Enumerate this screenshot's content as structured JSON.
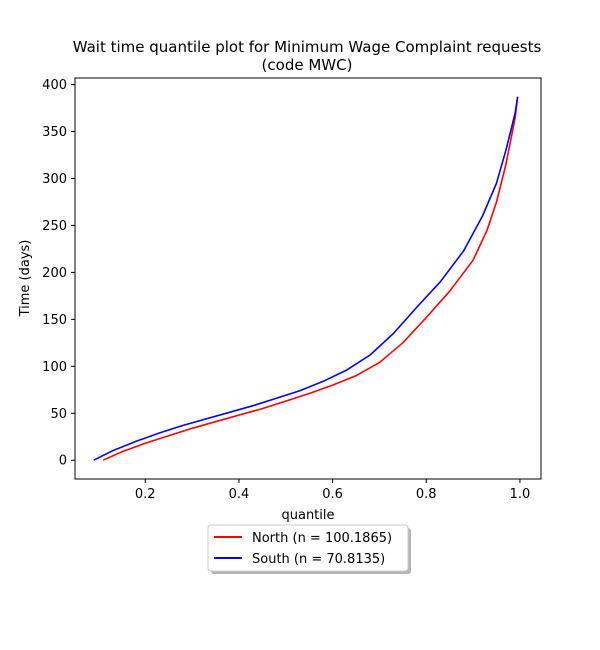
{
  "chart_data": {
    "type": "line",
    "title": "Wait time quantile plot for Minimum Wage Complaint  requests",
    "subtitle": "(code MWC)",
    "xlabel": "quantile",
    "ylabel": "Time (days)",
    "xlim": [
      0.05,
      1.045
    ],
    "ylim": [
      -20,
      407
    ],
    "xticks": [
      0.2,
      0.4,
      0.6,
      0.8,
      1.0
    ],
    "xtick_labels": [
      "0.2",
      "0.4",
      "0.6",
      "0.8",
      "1.0"
    ],
    "yticks": [
      0,
      50,
      100,
      150,
      200,
      250,
      300,
      350,
      400
    ],
    "ytick_labels": [
      "0",
      "50",
      "100",
      "150",
      "200",
      "250",
      "300",
      "350",
      "400"
    ],
    "grid": false,
    "legend_position": "bottom-center-outside",
    "series": [
      {
        "name": "North (n = 100.1865)",
        "color": "#ff0000",
        "x": [
          0.11,
          0.15,
          0.2,
          0.25,
          0.3,
          0.35,
          0.4,
          0.45,
          0.5,
          0.55,
          0.6,
          0.65,
          0.7,
          0.75,
          0.8,
          0.85,
          0.9,
          0.93,
          0.95,
          0.97,
          0.98,
          0.99,
          0.995
        ],
        "y": [
          0,
          9,
          18,
          26,
          34,
          41,
          48,
          55,
          63,
          71,
          80,
          90,
          104,
          125,
          152,
          180,
          213,
          245,
          275,
          315,
          340,
          365,
          387
        ]
      },
      {
        "name": "South (n = 70.8135)",
        "color": "#0000ff",
        "x": [
          0.09,
          0.13,
          0.18,
          0.23,
          0.28,
          0.33,
          0.38,
          0.43,
          0.48,
          0.53,
          0.58,
          0.63,
          0.68,
          0.73,
          0.78,
          0.83,
          0.88,
          0.92,
          0.95,
          0.97,
          0.98,
          0.99,
          0.995
        ],
        "y": [
          0,
          10,
          20,
          29,
          37,
          44,
          51,
          58,
          66,
          74,
          84,
          96,
          112,
          135,
          163,
          190,
          223,
          260,
          295,
          330,
          350,
          370,
          387
        ]
      }
    ]
  }
}
